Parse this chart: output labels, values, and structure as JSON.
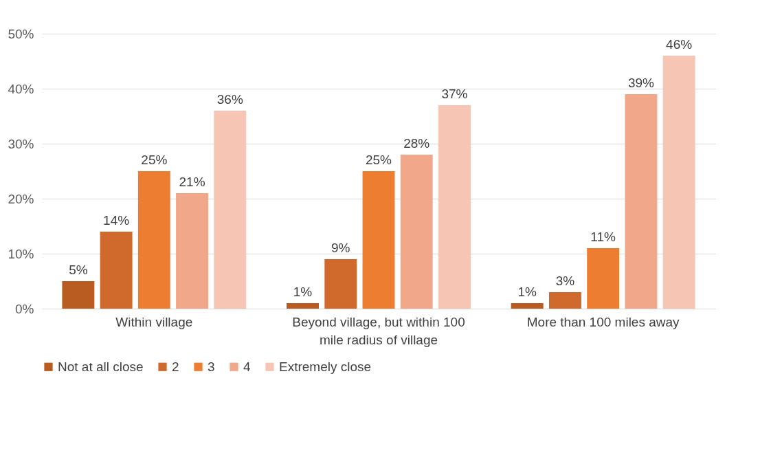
{
  "chart_data": {
    "type": "bar",
    "categories": [
      "Within village",
      "Beyond village, but within 100 mile radius of village",
      "More than 100 miles away"
    ],
    "series": [
      {
        "name": "Not at all close",
        "color": "#b85c22",
        "values": [
          5,
          1,
          1
        ],
        "value_labels": [
          "5%",
          "1%",
          "1%"
        ]
      },
      {
        "name": "2",
        "color": "#d06a2c",
        "values": [
          14,
          9,
          3
        ],
        "value_labels": [
          "14%",
          "9%",
          "3%"
        ]
      },
      {
        "name": "3",
        "color": "#ed7d31",
        "values": [
          25,
          25,
          11
        ],
        "value_labels": [
          "25%",
          "25%",
          "11%"
        ]
      },
      {
        "name": "4",
        "color": "#f1a78a",
        "values": [
          21,
          28,
          39
        ],
        "value_labels": [
          "21%",
          "28%",
          "39%"
        ]
      },
      {
        "name": "Extremely close",
        "color": "#f6c5b3",
        "values": [
          36,
          37,
          46
        ],
        "value_labels": [
          "36%",
          "37%",
          "46%"
        ]
      }
    ],
    "ylim": [
      0,
      50
    ],
    "yticks": [
      {
        "value": 0,
        "label": "0%"
      },
      {
        "value": 10,
        "label": "10%"
      },
      {
        "value": 20,
        "label": "20%"
      },
      {
        "value": 30,
        "label": "30%"
      },
      {
        "value": 40,
        "label": "40%"
      },
      {
        "value": 50,
        "label": "50%"
      }
    ],
    "grid": "y",
    "legend": "bottom"
  }
}
